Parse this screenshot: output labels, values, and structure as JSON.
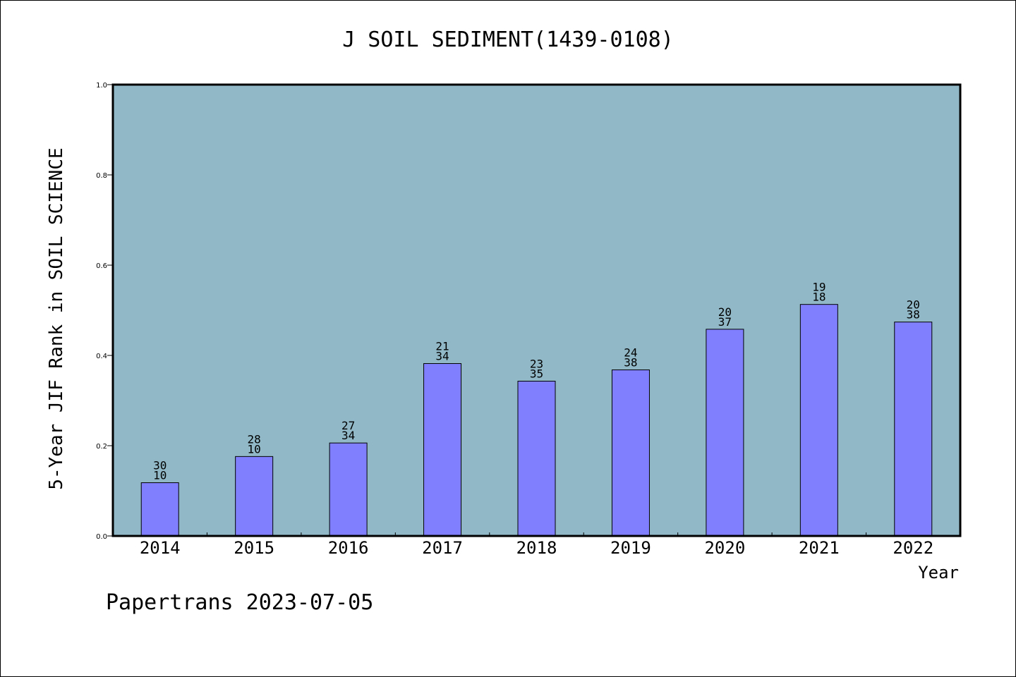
{
  "chart_data": {
    "type": "bar",
    "title": "J SOIL SEDIMENT(1439-0108)",
    "xlabel": "Year",
    "ylabel": "5-Year JIF Rank in SOIL SCIENCE",
    "ylim": [
      0,
      1.0
    ],
    "yticks": [
      "0.0",
      "0.2",
      "0.4",
      "0.6",
      "0.8",
      "1.0"
    ],
    "categories": [
      "2014",
      "2015",
      "2016",
      "2017",
      "2018",
      "2019",
      "2020",
      "2021",
      "2022"
    ],
    "values": [
      0.118,
      0.176,
      0.206,
      0.382,
      0.343,
      0.368,
      0.458,
      0.513,
      0.474
    ],
    "label_top": [
      "30",
      "28",
      "27",
      "21",
      "23",
      "24",
      "20",
      "19",
      "20"
    ],
    "label_bottom": [
      "10",
      "10",
      "34",
      "34",
      "35",
      "38",
      "37",
      "18",
      "38"
    ],
    "plot_bg_color": "#90b8c6",
    "bar_color": "#8080ff",
    "grid": false
  },
  "footer": "Papertrans 2023-07-05"
}
